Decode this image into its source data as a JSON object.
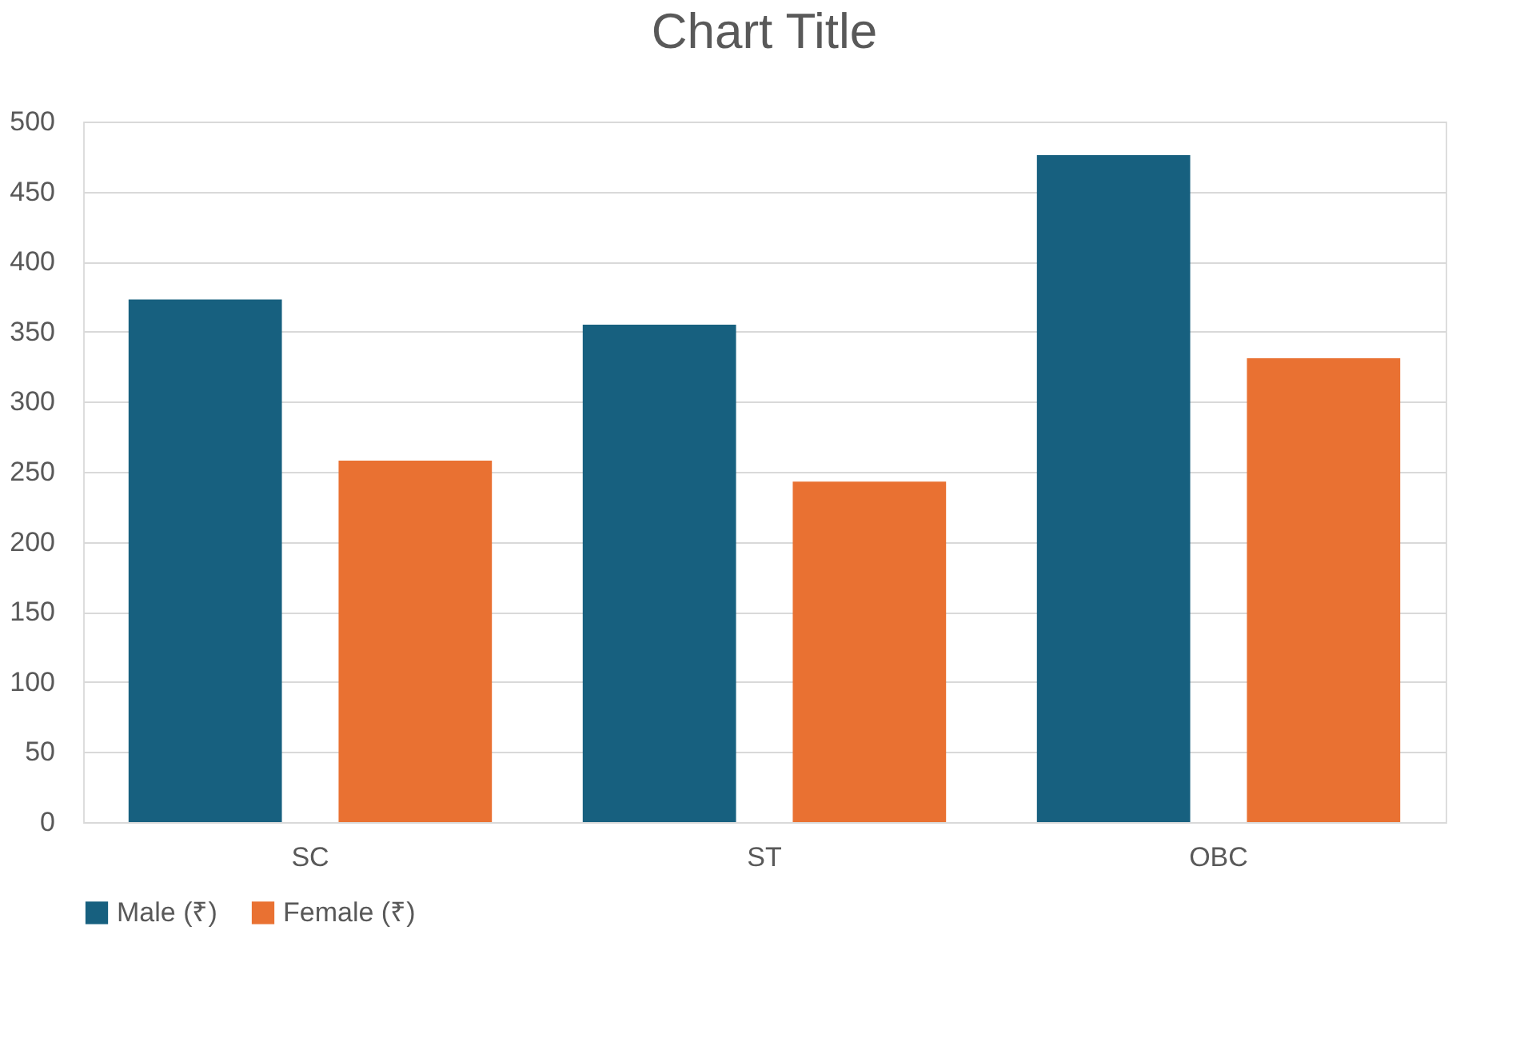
{
  "chart_data": {
    "type": "bar",
    "title": "Chart Title",
    "categories": [
      "SC",
      "ST",
      "OBC"
    ],
    "series": [
      {
        "name": "Male (₹)",
        "color": "#17607f",
        "values": [
          373,
          355,
          476
        ]
      },
      {
        "name": "Female (₹)",
        "color": "#e97132",
        "values": [
          258,
          243,
          331
        ]
      }
    ],
    "ylim": [
      0,
      500
    ],
    "yticks": [
      0,
      50,
      100,
      150,
      200,
      250,
      300,
      350,
      400,
      450,
      500
    ],
    "grid": "y",
    "legend": "bottom"
  }
}
